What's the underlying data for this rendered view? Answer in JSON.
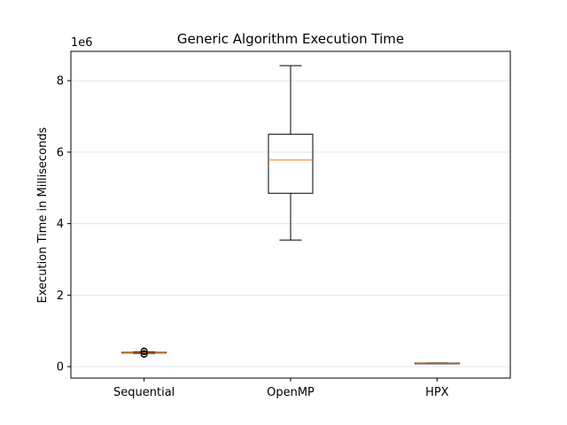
{
  "chart_data": {
    "type": "box",
    "title": "Generic Algorithm Execution Time",
    "xlabel": "",
    "ylabel": "Execution Time in Milliseconds",
    "y_offset_label": "1e6",
    "ylim": [
      -320000,
      8820000
    ],
    "y_ticks": [
      0,
      2000000,
      4000000,
      6000000,
      8000000
    ],
    "y_tick_labels": [
      "0",
      "2",
      "4",
      "6",
      "8"
    ],
    "grid": "y",
    "categories": [
      "Sequential",
      "OpenMP",
      "HPX"
    ],
    "boxes": [
      {
        "name": "Sequential",
        "whisker_low": 370000,
        "q1": 380000,
        "median": 390000,
        "q3": 400000,
        "whisker_high": 410000,
        "outliers": [
          350000,
          365000,
          420000,
          435000
        ]
      },
      {
        "name": "OpenMP",
        "whisker_low": 3540000,
        "q1": 4850000,
        "median": 5780000,
        "q3": 6500000,
        "whisker_high": 8420000,
        "outliers": []
      },
      {
        "name": "HPX",
        "whisker_low": 85000,
        "q1": 92000,
        "median": 95000,
        "q3": 100000,
        "whisker_high": 105000,
        "outliers": []
      }
    ],
    "colors": {
      "box": "#000000",
      "median": "#ff7f0e",
      "grid": "#e6e6e6"
    }
  }
}
